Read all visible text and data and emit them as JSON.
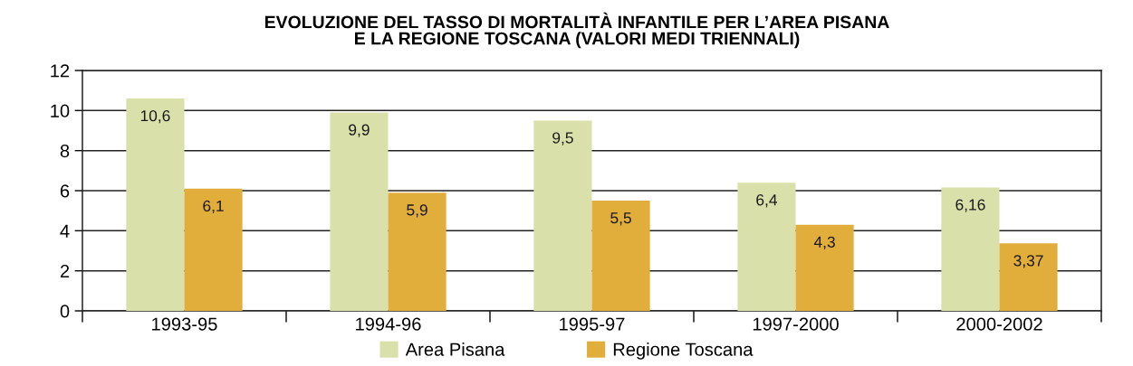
{
  "chart_data": {
    "type": "bar",
    "title": "EVOLUZIONE DEL TASSO DI MORTALITÀ INFANTILE PER L’AREA PISANA\nE LA REGIONE TOSCANA (VALORI MEDI TRIENNALI)",
    "categories": [
      "1993-95",
      "1994-96",
      "1995-97",
      "1997-2000",
      "2000-2002"
    ],
    "series": [
      {
        "name": "Area Pisana",
        "color": "#d9e0a9",
        "values": [
          10.6,
          9.9,
          9.5,
          6.4,
          6.16
        ],
        "value_labels": [
          "10,6",
          "9,9",
          "9,5",
          "6,4",
          "6,16"
        ]
      },
      {
        "name": "Regione Toscana",
        "color": "#e1ad3b",
        "values": [
          6.1,
          5.9,
          5.5,
          4.3,
          3.37
        ],
        "value_labels": [
          "6,1",
          "5,9",
          "5,5",
          "4,3",
          "3,37"
        ]
      }
    ],
    "ylim": [
      0,
      12
    ],
    "yticks": [
      0,
      2,
      4,
      6,
      8,
      10,
      12
    ],
    "grid": "y",
    "legend": "bottom"
  }
}
